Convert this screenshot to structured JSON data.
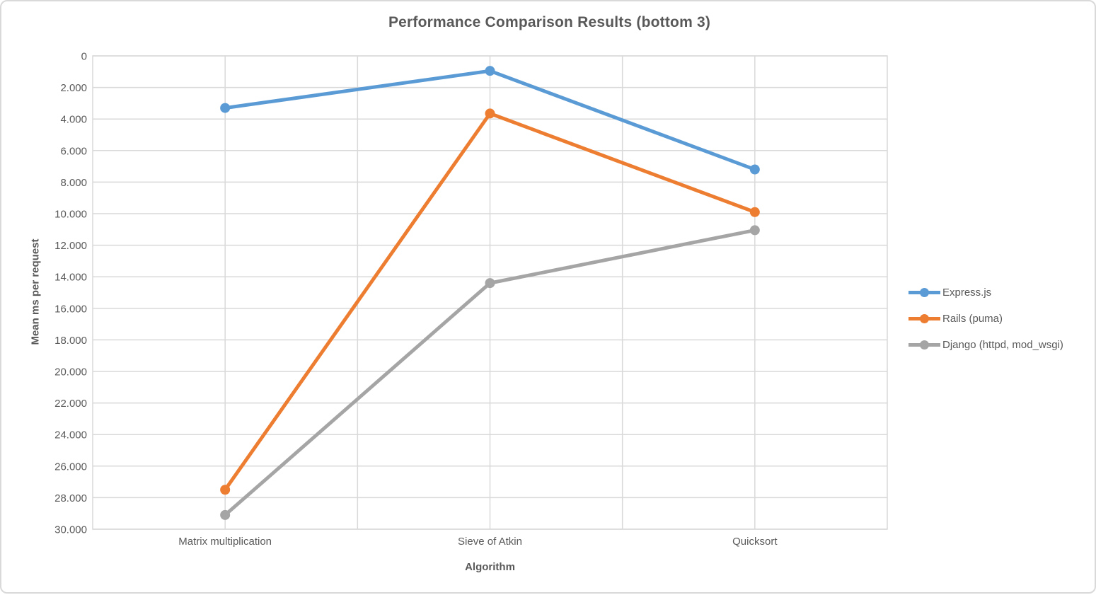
{
  "chart_data": {
    "type": "line",
    "title": "Performance Comparison Results (bottom 3)",
    "xlabel": "Algorithm",
    "ylabel": "Mean ms per request",
    "categories": [
      "Matrix multiplication",
      "Sieve of Atkin",
      "Quicksort"
    ],
    "series": [
      {
        "name": "Express.js",
        "color": "#5B9BD5",
        "values": [
          3300,
          950,
          7200
        ]
      },
      {
        "name": "Rails (puma)",
        "color": "#ED7D31",
        "values": [
          27500,
          3650,
          9900
        ]
      },
      {
        "name": "Django (httpd, mod_wsgi)",
        "color": "#A5A5A5",
        "values": [
          29100,
          14400,
          11050
        ]
      }
    ],
    "y_axis": {
      "min": 0,
      "max": 30000,
      "step": 2000,
      "inverted": true,
      "tick_labels": [
        "0",
        "2.000",
        "4.000",
        "6.000",
        "8.000",
        "10.000",
        "12.000",
        "14.000",
        "16.000",
        "18.000",
        "20.000",
        "22.000",
        "24.000",
        "26.000",
        "28.000",
        "30.000"
      ]
    },
    "legend_position": "right",
    "grid": true,
    "colors": {
      "gridline": "#D9D9D9",
      "plot_border": "#D9D9D9",
      "text": "#595959",
      "background": "#FFFFFF"
    }
  }
}
